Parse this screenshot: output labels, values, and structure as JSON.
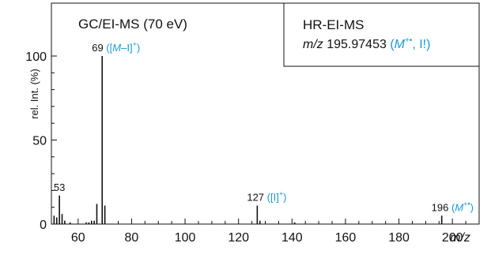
{
  "chart_data": {
    "type": "bar",
    "title": "GC/EI-MS (70 eV)",
    "xlabel": "m/z",
    "ylabel": "rel. Int. (%)",
    "xlim": [
      50,
      210
    ],
    "ylim": [
      0,
      115
    ],
    "x_ticks": [
      60,
      80,
      100,
      120,
      140,
      160,
      180,
      200
    ],
    "y_ticks": [
      0,
      50,
      100
    ],
    "peaks": [
      {
        "x": 51,
        "y": 5
      },
      {
        "x": 52,
        "y": 4
      },
      {
        "x": 53,
        "y": 17
      },
      {
        "x": 54,
        "y": 6
      },
      {
        "x": 55,
        "y": 2
      },
      {
        "x": 57,
        "y": 1
      },
      {
        "x": 63,
        "y": 1
      },
      {
        "x": 64,
        "y": 1
      },
      {
        "x": 65,
        "y": 2
      },
      {
        "x": 66,
        "y": 2
      },
      {
        "x": 67,
        "y": 12
      },
      {
        "x": 69,
        "y": 100
      },
      {
        "x": 70,
        "y": 11
      },
      {
        "x": 127,
        "y": 11
      },
      {
        "x": 128,
        "y": 2
      },
      {
        "x": 141,
        "y": 1
      },
      {
        "x": 196,
        "y": 5
      }
    ],
    "peak_labels": [
      {
        "x": 53,
        "y": 17,
        "mz": "53",
        "ion": ""
      },
      {
        "x": 69,
        "y": 100,
        "mz": "69",
        "ion_prefix": "([",
        "ion_italic": "M",
        "ion_suffix": "–I]",
        "ion_sup": "+",
        "ion_close": ")"
      },
      {
        "x": 127,
        "y": 11,
        "mz": "127",
        "ion_prefix": "([I]",
        "ion_italic": "",
        "ion_suffix": "",
        "ion_sup": "+",
        "ion_close": ")"
      },
      {
        "x": 196,
        "y": 5,
        "mz": "196",
        "ion_prefix": "(",
        "ion_italic": "M",
        "ion_suffix": "",
        "ion_sup": "+•",
        "ion_close": ")"
      }
    ],
    "hr_box": {
      "line1": "HR-EI-MS",
      "mz_label": "m/z",
      "mz_value": "195.97453",
      "ion_prefix": "(",
      "ion_italic": "M",
      "ion_sup": "+•",
      "ion_suffix": ", I!)"
    },
    "colors": {
      "axis": "#111111",
      "accent": "#1a9ad6"
    }
  }
}
